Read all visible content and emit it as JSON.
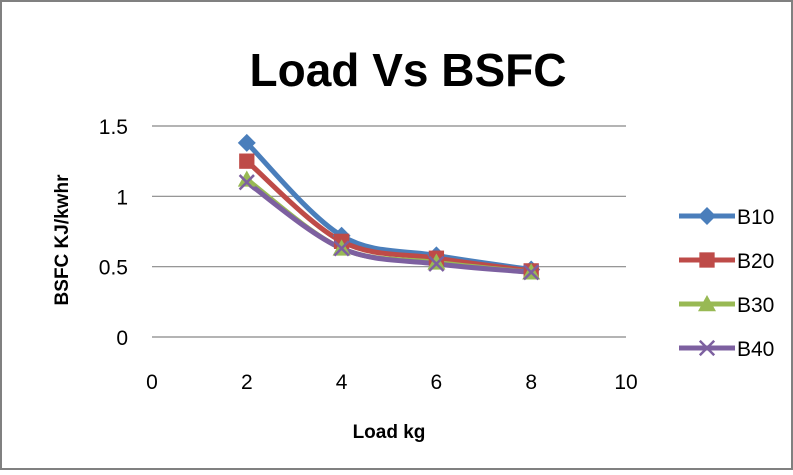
{
  "chart_data": {
    "type": "line",
    "title": "Load Vs BSFC",
    "xlabel": "Load kg",
    "ylabel": "BSFC KJ/kwhr",
    "xlim": [
      0,
      10
    ],
    "ylim": [
      0,
      1.5
    ],
    "x_ticks": [
      "0",
      "2",
      "4",
      "6",
      "8",
      "10"
    ],
    "y_ticks": [
      "0",
      "0.5",
      "1",
      "1.5"
    ],
    "x_tick_values": [
      0,
      2,
      4,
      6,
      8,
      10
    ],
    "y_tick_values": [
      0,
      0.5,
      1,
      1.5
    ],
    "grid": "horizontal",
    "legend_position": "right",
    "series": [
      {
        "name": "B10",
        "x": [
          2,
          4,
          6,
          8
        ],
        "values": [
          1.38,
          0.72,
          0.58,
          0.48
        ],
        "color": "#4A7EBB",
        "marker": "diamond"
      },
      {
        "name": "B20",
        "x": [
          2,
          4,
          6,
          8
        ],
        "values": [
          1.25,
          0.68,
          0.56,
          0.47
        ],
        "color": "#BE4B48",
        "marker": "square"
      },
      {
        "name": "B30",
        "x": [
          2,
          4,
          6,
          8
        ],
        "values": [
          1.12,
          0.63,
          0.53,
          0.46
        ],
        "color": "#98B954",
        "marker": "triangle"
      },
      {
        "name": "B40",
        "x": [
          2,
          4,
          6,
          8
        ],
        "values": [
          1.1,
          0.63,
          0.52,
          0.46
        ],
        "color": "#7D60A0",
        "marker": "x"
      }
    ]
  }
}
